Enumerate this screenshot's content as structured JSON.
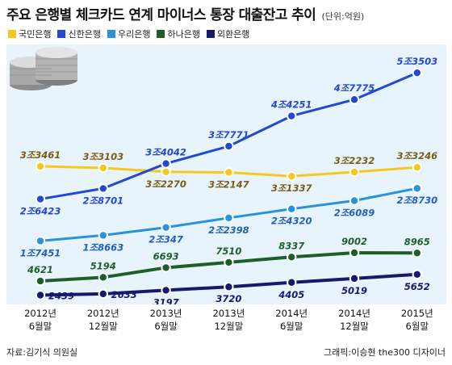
{
  "header": {
    "title": "주요 은행별 체크카드 연계 마이너스 통장 대출잔고 추이",
    "unit": "(단위:억원)"
  },
  "footer": {
    "source": "자료:김기식 의원실",
    "credit": "그래픽:이승현 the300 디자이너"
  },
  "colors": {
    "plot_background": "#e8f4fb"
  },
  "chart_data": {
    "type": "line",
    "title": "주요 은행별 체크카드 연계 마이너스 통장 대출잔고 추이",
    "unit": "(단위:억원)",
    "categories": [
      [
        "2012년",
        "6월말"
      ],
      [
        "2012년",
        "12월말"
      ],
      [
        "2013년",
        "6월말"
      ],
      [
        "2013년",
        "12월말"
      ],
      [
        "2014년",
        "6월말"
      ],
      [
        "2014년",
        "12월말"
      ],
      [
        "2015년",
        "6월말"
      ]
    ],
    "legend_position": "top-left",
    "grid": false,
    "series": [
      {
        "name": "국민은행",
        "color": "#f6c81e",
        "label_color": "#7a5c14",
        "label_pos": [
          "above",
          "above",
          "below",
          "below",
          "below",
          "above",
          "above"
        ],
        "values": [
          33461,
          33103,
          32270,
          32147,
          31337,
          32232,
          33246
        ],
        "labels": [
          "3조3461",
          "3조3103",
          "3조2270",
          "3조2147",
          "3조1337",
          "3조2232",
          "3조3246"
        ]
      },
      {
        "name": "신한은행",
        "color": "#2447d6",
        "label_color": "#2447d6",
        "label_pos": [
          "below",
          "below",
          "above",
          "above",
          "above",
          "above",
          "above"
        ],
        "values": [
          26423,
          28701,
          34042,
          37771,
          44251,
          47775,
          53503
        ],
        "labels": [
          "2조6423",
          "2조8701",
          "3조4042",
          "3조7771",
          "4조4251",
          "4조7775",
          "5조3503"
        ]
      },
      {
        "name": "우리은행",
        "color": "#2793e0",
        "label_color": "#2060c0",
        "label_pos": [
          "below",
          "below",
          "below",
          "below",
          "below",
          "below",
          "below"
        ],
        "values": [
          17451,
          18663,
          20347,
          22398,
          24320,
          26089,
          28730
        ],
        "labels": [
          "1조7451",
          "1조8663",
          "2조347",
          "2조2398",
          "2조4320",
          "2조6089",
          "2조8730"
        ]
      },
      {
        "name": "하나은행",
        "color": "#1f5e2a",
        "label_color": "#1f5e2a",
        "label_pos": [
          "above",
          "above",
          "above",
          "above",
          "above",
          "above",
          "above"
        ],
        "values": [
          4621,
          5194,
          6693,
          7510,
          8337,
          9002,
          8965
        ],
        "labels": [
          "4621",
          "5194",
          "6693",
          "7510",
          "8337",
          "9002",
          "8965"
        ]
      },
      {
        "name": "외환은행",
        "color": "#151a6e",
        "label_color": "#151a6e",
        "label_pos": [
          "right",
          "right",
          "below",
          "below",
          "below",
          "below",
          "below"
        ],
        "values": [
          2439,
          2633,
          3197,
          3720,
          4405,
          5019,
          5652
        ],
        "labels": [
          "2439",
          "2633",
          "3197",
          "3720",
          "4405",
          "5019",
          "5652"
        ]
      }
    ]
  }
}
